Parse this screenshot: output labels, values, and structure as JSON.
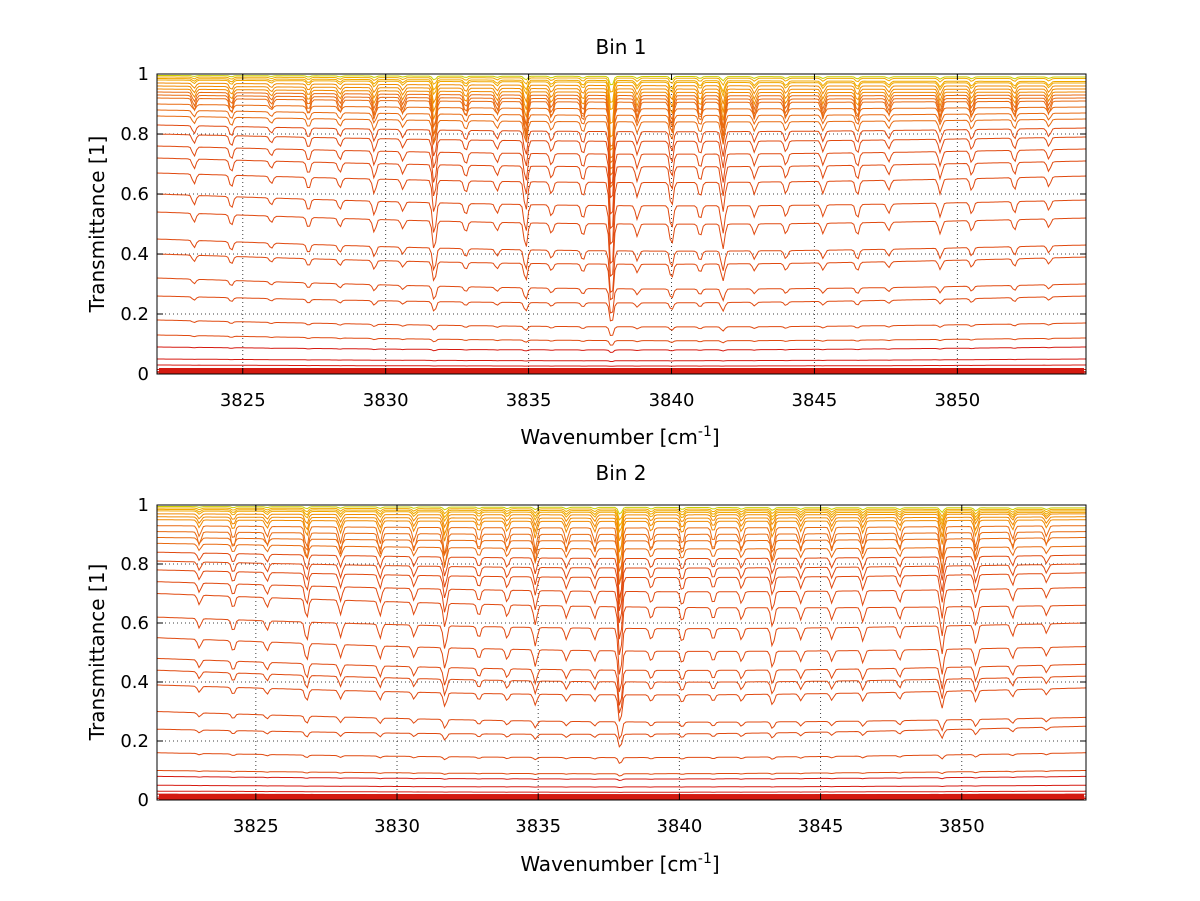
{
  "chart_data": [
    {
      "type": "line",
      "title": "Bin 1",
      "xlabel": "Wavenumber [cm",
      "xlabel_sup": "-1",
      "xlabel_end": "]",
      "ylabel": "Transmittance [1]",
      "xlim": [
        3822,
        3854.5
      ],
      "ylim": [
        0,
        1
      ],
      "xticks": [
        3825,
        3830,
        3835,
        3840,
        3845,
        3850
      ],
      "xtick_labels": [
        "3825",
        "3830",
        "3835",
        "3840",
        "3845",
        "3850"
      ],
      "yticks": [
        0,
        0.2,
        0.4,
        0.6,
        0.8,
        1
      ],
      "ytick_labels": [
        "0",
        "0.2",
        "0.4",
        "0.6",
        "0.8",
        "1"
      ],
      "grid": true,
      "series_levels": [
        1.0,
        0.995,
        0.99,
        0.985,
        0.98,
        0.97,
        0.96,
        0.95,
        0.94,
        0.93,
        0.92,
        0.9,
        0.88,
        0.86,
        0.83,
        0.8,
        0.76,
        0.72,
        0.67,
        0.6,
        0.54,
        0.45,
        0.4,
        0.32,
        0.26,
        0.18,
        0.13,
        0.09,
        0.05,
        0.03,
        0.015,
        0.008,
        0.004
      ],
      "series_end_levels": [
        1.0,
        0.99,
        0.985,
        0.975,
        0.97,
        0.96,
        0.95,
        0.94,
        0.93,
        0.92,
        0.91,
        0.89,
        0.87,
        0.85,
        0.82,
        0.79,
        0.75,
        0.71,
        0.66,
        0.58,
        0.52,
        0.43,
        0.39,
        0.3,
        0.26,
        0.17,
        0.12,
        0.09,
        0.05,
        0.03,
        0.015,
        0.008,
        0.004
      ],
      "absorption_lines": [
        {
          "x": 3823.3,
          "depth": 0.04
        },
        {
          "x": 3824.6,
          "depth": 0.05
        },
        {
          "x": 3826.0,
          "depth": 0.03
        },
        {
          "x": 3827.3,
          "depth": 0.05
        },
        {
          "x": 3828.4,
          "depth": 0.04
        },
        {
          "x": 3829.6,
          "depth": 0.06
        },
        {
          "x": 3830.6,
          "depth": 0.04
        },
        {
          "x": 3831.7,
          "depth": 0.14
        },
        {
          "x": 3832.8,
          "depth": 0.05
        },
        {
          "x": 3833.9,
          "depth": 0.04
        },
        {
          "x": 3834.9,
          "depth": 0.12
        },
        {
          "x": 3835.8,
          "depth": 0.05
        },
        {
          "x": 3836.9,
          "depth": 0.06
        },
        {
          "x": 3837.9,
          "depth": 0.3
        },
        {
          "x": 3838.8,
          "depth": 0.06
        },
        {
          "x": 3840.0,
          "depth": 0.1
        },
        {
          "x": 3841.0,
          "depth": 0.06
        },
        {
          "x": 3841.8,
          "depth": 0.12
        },
        {
          "x": 3842.9,
          "depth": 0.05
        },
        {
          "x": 3844.0,
          "depth": 0.05
        },
        {
          "x": 3845.3,
          "depth": 0.05
        },
        {
          "x": 3846.5,
          "depth": 0.06
        },
        {
          "x": 3847.6,
          "depth": 0.04
        },
        {
          "x": 3849.4,
          "depth": 0.06
        },
        {
          "x": 3850.5,
          "depth": 0.05
        },
        {
          "x": 3852.0,
          "depth": 0.05
        },
        {
          "x": 3853.2,
          "depth": 0.04
        }
      ]
    },
    {
      "type": "line",
      "title": "Bin 2",
      "xlabel": "Wavenumber [cm",
      "xlabel_sup": "-1",
      "xlabel_end": "]",
      "ylabel": "Transmittance [1]",
      "xlim": [
        3821.5,
        3854.4
      ],
      "ylim": [
        0,
        1
      ],
      "xticks": [
        3825,
        3830,
        3835,
        3840,
        3845,
        3850
      ],
      "xtick_labels": [
        "3825",
        "3830",
        "3835",
        "3840",
        "3845",
        "3850"
      ],
      "yticks": [
        0,
        0.2,
        0.4,
        0.6,
        0.8,
        1
      ],
      "ytick_labels": [
        "0",
        "0.2",
        "0.4",
        "0.6",
        "0.8",
        "1"
      ],
      "grid": true,
      "series_levels": [
        1.0,
        0.995,
        0.99,
        0.985,
        0.98,
        0.97,
        0.96,
        0.95,
        0.93,
        0.91,
        0.89,
        0.87,
        0.84,
        0.81,
        0.78,
        0.74,
        0.7,
        0.62,
        0.55,
        0.48,
        0.44,
        0.39,
        0.3,
        0.24,
        0.16,
        0.1,
        0.08,
        0.05,
        0.03,
        0.02,
        0.01,
        0.005
      ],
      "series_end_levels": [
        1.0,
        0.99,
        0.985,
        0.98,
        0.975,
        0.97,
        0.96,
        0.95,
        0.93,
        0.91,
        0.89,
        0.86,
        0.83,
        0.8,
        0.77,
        0.72,
        0.66,
        0.6,
        0.52,
        0.46,
        0.42,
        0.38,
        0.28,
        0.25,
        0.16,
        0.1,
        0.08,
        0.05,
        0.03,
        0.02,
        0.01,
        0.005
      ],
      "absorption_lines": [
        {
          "x": 3823.0,
          "depth": 0.04
        },
        {
          "x": 3824.2,
          "depth": 0.05
        },
        {
          "x": 3825.4,
          "depth": 0.04
        },
        {
          "x": 3826.8,
          "depth": 0.08
        },
        {
          "x": 3828.0,
          "depth": 0.06
        },
        {
          "x": 3829.4,
          "depth": 0.06
        },
        {
          "x": 3830.6,
          "depth": 0.05
        },
        {
          "x": 3831.7,
          "depth": 0.1
        },
        {
          "x": 3832.9,
          "depth": 0.05
        },
        {
          "x": 3833.9,
          "depth": 0.05
        },
        {
          "x": 3834.9,
          "depth": 0.08
        },
        {
          "x": 3836.0,
          "depth": 0.05
        },
        {
          "x": 3837.0,
          "depth": 0.05
        },
        {
          "x": 3837.9,
          "depth": 0.22
        },
        {
          "x": 3839.0,
          "depth": 0.05
        },
        {
          "x": 3840.1,
          "depth": 0.06
        },
        {
          "x": 3841.2,
          "depth": 0.05
        },
        {
          "x": 3842.2,
          "depth": 0.05
        },
        {
          "x": 3843.3,
          "depth": 0.08
        },
        {
          "x": 3844.3,
          "depth": 0.05
        },
        {
          "x": 3845.4,
          "depth": 0.05
        },
        {
          "x": 3846.5,
          "depth": 0.06
        },
        {
          "x": 3847.8,
          "depth": 0.05
        },
        {
          "x": 3849.3,
          "depth": 0.12
        },
        {
          "x": 3850.5,
          "depth": 0.08
        },
        {
          "x": 3851.8,
          "depth": 0.05
        },
        {
          "x": 3853.0,
          "depth": 0.04
        }
      ]
    }
  ]
}
